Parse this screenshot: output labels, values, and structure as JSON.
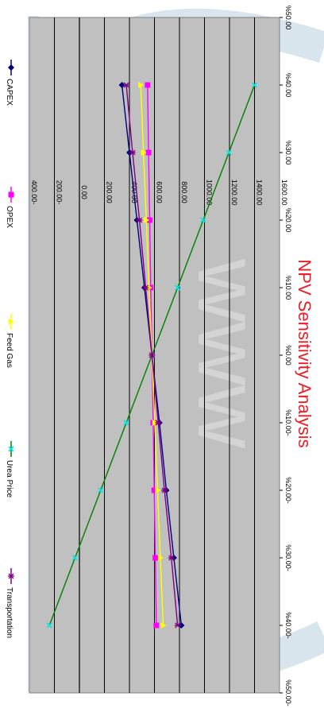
{
  "chart_data": {
    "type": "line",
    "title": "NPV Sensitivity Analysis",
    "orientation": "rotated-90-clockwise",
    "x": [
      "%40.00-",
      "%30.00-",
      "%20.00-",
      "%10.00-",
      "%0.00",
      "%10.00",
      "%20.00",
      "%30.00",
      "%40.00"
    ],
    "x_values": [
      -40,
      -30,
      -20,
      -10,
      0,
      10,
      20,
      30,
      40
    ],
    "xlim": [
      -50,
      50
    ],
    "x_ticks": [
      "%50.00-",
      "%40.00-",
      "%30.00-",
      "%20.00-",
      "%10.00-",
      "%0.00",
      "%10.00",
      "%20.00",
      "%30.00",
      "%40.00",
      "%50.00"
    ],
    "ylim": [
      -400,
      1600
    ],
    "y_ticks": [
      "400.00-",
      "200.00-",
      "0.00",
      "200.00",
      "400.00",
      "600.00",
      "800.00",
      "1000.00",
      "1200.00",
      "1400.00",
      "1600.00"
    ],
    "grid": true,
    "legend_position": "bottom",
    "series": [
      {
        "name": "CAPEX",
        "color": "#000080",
        "marker": "diamond",
        "values": [
          815,
          755,
          695,
          640,
          580,
          520,
          460,
          400,
          340
        ]
      },
      {
        "name": "OPEX",
        "color": "#ff00ff",
        "marker": "square",
        "values": [
          615,
          607,
          598,
          590,
          580,
          570,
          562,
          553,
          545
        ]
      },
      {
        "name": "Feed Gas",
        "color": "#ffff00",
        "marker": "triangle",
        "values": [
          670,
          647,
          625,
          602,
          580,
          557,
          535,
          512,
          490
        ]
      },
      {
        "name": "Urea Price",
        "color": "#008000",
        "marker": "cross",
        "marker_color": "#00e5e5",
        "values": [
          -240,
          -35,
          170,
          375,
          580,
          785,
          990,
          1195,
          1400
        ]
      },
      {
        "name": "Transportation",
        "color": "#800080",
        "marker": "star",
        "values": [
          785,
          735,
          680,
          630,
          580,
          530,
          480,
          425,
          375
        ]
      }
    ]
  },
  "watermark": {
    "text": "www",
    "color": "#a9c6d6"
  }
}
